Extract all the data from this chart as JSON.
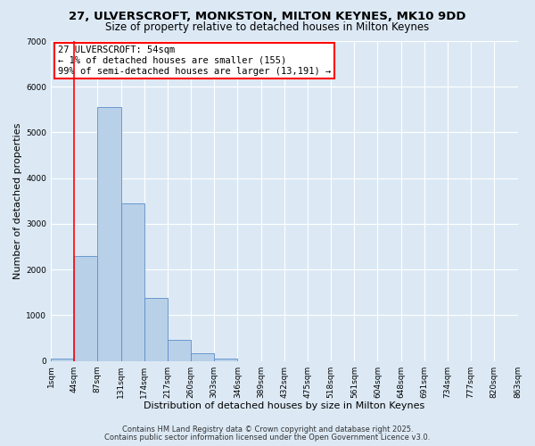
{
  "title": "27, ULVERSCROFT, MONKSTON, MILTON KEYNES, MK10 9DD",
  "subtitle": "Size of property relative to detached houses in Milton Keynes",
  "xlabel": "Distribution of detached houses by size in Milton Keynes",
  "ylabel": "Number of detached properties",
  "bar_values": [
    50,
    2300,
    5550,
    3450,
    1380,
    460,
    175,
    60,
    0,
    0,
    0,
    0,
    0,
    0,
    0,
    0,
    0,
    0,
    0,
    0
  ],
  "bin_labels": [
    "1sqm",
    "44sqm",
    "87sqm",
    "131sqm",
    "174sqm",
    "217sqm",
    "260sqm",
    "303sqm",
    "346sqm",
    "389sqm",
    "432sqm",
    "475sqm",
    "518sqm",
    "561sqm",
    "604sqm",
    "648sqm",
    "691sqm",
    "734sqm",
    "777sqm",
    "820sqm",
    "863sqm"
  ],
  "bar_color": "#b8d0e8",
  "bar_edge_color": "#5b8fc9",
  "background_color": "#dce9f5",
  "plot_bg_color": "#dce9f5",
  "grid_color": "#ffffff",
  "red_line_x": 1,
  "annotation_box_text": "27 ULVERSCROFT: 54sqm\n← 1% of detached houses are smaller (155)\n99% of semi-detached houses are larger (13,191) →",
  "ylim": [
    0,
    7000
  ],
  "yticks": [
    0,
    1000,
    2000,
    3000,
    4000,
    5000,
    6000,
    7000
  ],
  "footer_line1": "Contains HM Land Registry data © Crown copyright and database right 2025.",
  "footer_line2": "Contains public sector information licensed under the Open Government Licence v3.0.",
  "title_fontsize": 9.5,
  "subtitle_fontsize": 8.5,
  "tick_fontsize": 6.5,
  "ylabel_fontsize": 8,
  "xlabel_fontsize": 8
}
